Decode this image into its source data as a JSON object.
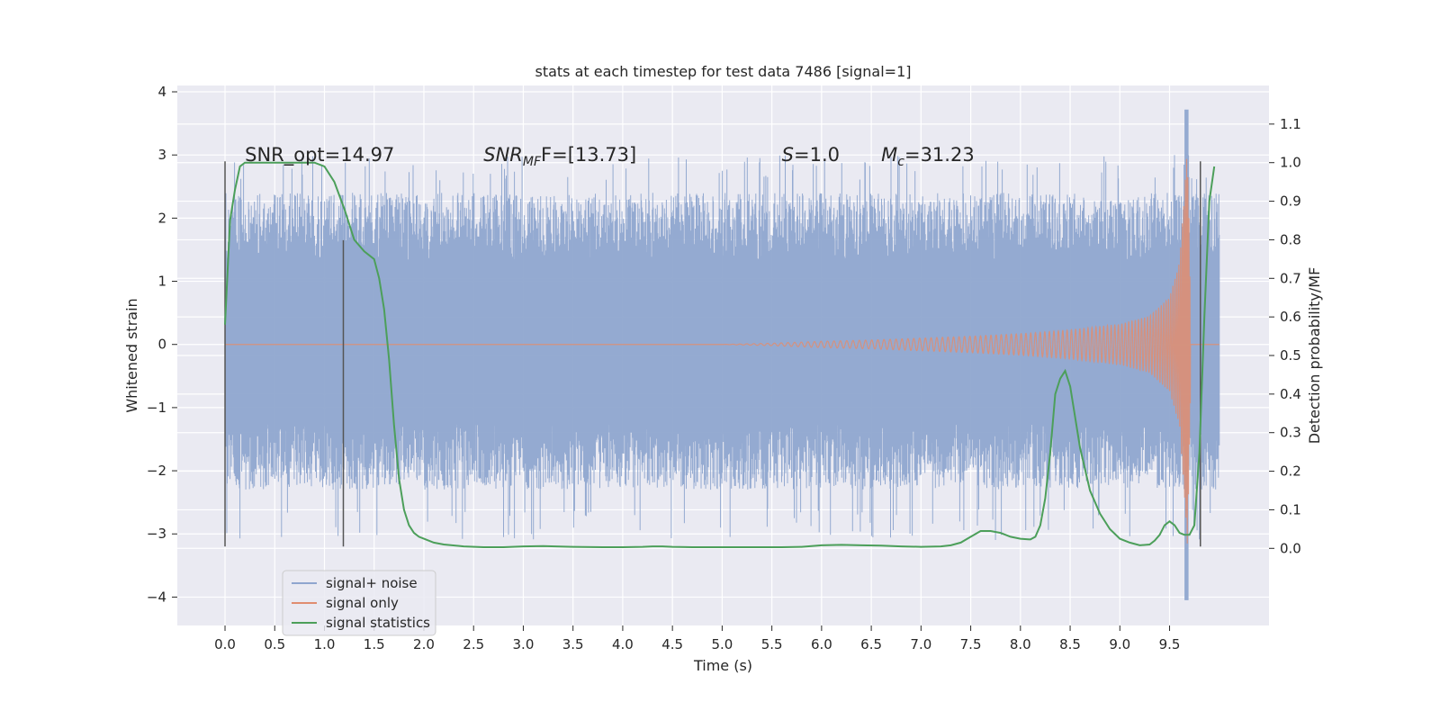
{
  "chart_data": {
    "type": "line",
    "title": "stats at each timestep for test data 7486 [signal=1]",
    "xlabel": "Time (s)",
    "ylabel": "Whitened strain",
    "ylabel_right": "Detection probability/MF",
    "xlim": [
      -0.48,
      10.5
    ],
    "ylim": [
      -4.45,
      4.1
    ],
    "ylim_right": [
      -0.2,
      1.2
    ],
    "x_ticks": [
      0.0,
      0.5,
      1.0,
      1.5,
      2.0,
      2.5,
      3.0,
      3.5,
      4.0,
      4.5,
      5.0,
      5.5,
      6.0,
      6.5,
      7.0,
      7.5,
      8.0,
      8.5,
      9.0,
      9.5
    ],
    "x_tick_labels": [
      "0.0",
      "0.5",
      "1.0",
      "1.5",
      "2.0",
      "2.5",
      "3.0",
      "3.5",
      "4.0",
      "4.5",
      "5.0",
      "5.5",
      "6.0",
      "6.5",
      "7.0",
      "7.5",
      "8.0",
      "8.5",
      "9.0",
      "9.5"
    ],
    "y_ticks": [
      -4,
      -3,
      -2,
      -1,
      0,
      1,
      2,
      3,
      4
    ],
    "y_tick_labels": [
      "−4",
      "−3",
      "−2",
      "−1",
      "0",
      "1",
      "2",
      "3",
      "4"
    ],
    "y_right_ticks": [
      0.0,
      0.1,
      0.2,
      0.3,
      0.4,
      0.5,
      0.6,
      0.7,
      0.8,
      0.9,
      1.0,
      1.1
    ],
    "y_right_tick_labels": [
      "0.0",
      "0.1",
      "0.2",
      "0.3",
      "0.4",
      "0.5",
      "0.6",
      "0.7",
      "0.8",
      "0.9",
      "1.0",
      "1.1"
    ],
    "grid": true,
    "legend_position": "lower-left",
    "background_color": "#eaeaf2",
    "annotations": [
      {
        "text": "SNR_opt=14.97",
        "x": 0.2,
        "y": 2.9
      },
      {
        "text": "SNR",
        "sub": "MF",
        "tail": "F=[13.73]",
        "x": 2.6,
        "y": 2.9
      },
      {
        "text": "S",
        "tail": "=1.0",
        "x": 5.6,
        "y": 2.9
      },
      {
        "text": "M",
        "sub": "c",
        "tail": "=31.23",
        "x": 6.6,
        "y": 2.9
      }
    ],
    "vertical_markers": [
      {
        "x": 0.0,
        "y_top": 2.9,
        "y_bottom": -3.2
      },
      {
        "x": 1.19,
        "y_top": 1.65,
        "y_bottom": -3.2
      },
      {
        "x": 9.81,
        "y_top": 2.9,
        "y_bottom": -3.2
      }
    ],
    "noise_band": {
      "x_start": 0.0,
      "x_end": 10.0,
      "typical_max": 2.4,
      "typical_min": -2.3,
      "peak_max": 3.72,
      "peak_min": -4.05,
      "peak_x": 9.67
    },
    "series": [
      {
        "name": "signal+ noise",
        "color": "#8fa6cf",
        "description_points": {
          "x": [
            0.0,
            10.0
          ],
          "range": [
            -4.05,
            3.72
          ]
        }
      },
      {
        "name": "signal only",
        "color": "#e08d70",
        "amplitude_envelope": {
          "x": [
            0.0,
            5.0,
            5.5,
            6.0,
            6.5,
            7.0,
            7.5,
            8.0,
            8.5,
            9.0,
            9.3,
            9.5,
            9.6,
            9.65,
            9.68,
            9.72,
            10.0
          ],
          "y": [
            0.0,
            0.0,
            0.02,
            0.05,
            0.07,
            0.1,
            0.13,
            0.17,
            0.23,
            0.32,
            0.45,
            0.75,
            1.3,
            2.4,
            3.2,
            0.0,
            0.0
          ]
        }
      },
      {
        "name": "signal statistics",
        "color": "#4c9f5a",
        "axis": "right",
        "x": [
          0.0,
          0.05,
          0.1,
          0.15,
          0.2,
          0.3,
          0.5,
          0.7,
          0.9,
          1.0,
          1.1,
          1.2,
          1.3,
          1.4,
          1.5,
          1.55,
          1.6,
          1.65,
          1.7,
          1.75,
          1.8,
          1.85,
          1.9,
          1.95,
          2.0,
          2.1,
          2.2,
          2.4,
          2.6,
          2.8,
          3.0,
          3.2,
          3.5,
          3.8,
          4.0,
          4.2,
          4.3,
          4.4,
          4.5,
          4.7,
          5.0,
          5.3,
          5.6,
          5.8,
          6.0,
          6.2,
          6.4,
          6.6,
          6.8,
          7.0,
          7.2,
          7.3,
          7.4,
          7.5,
          7.6,
          7.7,
          7.8,
          7.9,
          8.0,
          8.1,
          8.15,
          8.2,
          8.25,
          8.3,
          8.35,
          8.4,
          8.45,
          8.5,
          8.55,
          8.6,
          8.7,
          8.8,
          8.9,
          9.0,
          9.1,
          9.2,
          9.3,
          9.35,
          9.4,
          9.45,
          9.5,
          9.55,
          9.6,
          9.65,
          9.7,
          9.75,
          9.8,
          9.85,
          9.9,
          9.95
        ],
        "y": [
          0.58,
          0.85,
          0.93,
          0.99,
          1.0,
          1.0,
          1.0,
          1.0,
          1.0,
          0.99,
          0.95,
          0.88,
          0.8,
          0.77,
          0.75,
          0.7,
          0.62,
          0.49,
          0.32,
          0.18,
          0.1,
          0.06,
          0.04,
          0.03,
          0.025,
          0.015,
          0.01,
          0.005,
          0.003,
          0.003,
          0.005,
          0.006,
          0.004,
          0.003,
          0.003,
          0.004,
          0.005,
          0.005,
          0.004,
          0.003,
          0.003,
          0.003,
          0.003,
          0.004,
          0.008,
          0.009,
          0.008,
          0.007,
          0.005,
          0.004,
          0.005,
          0.008,
          0.015,
          0.03,
          0.045,
          0.045,
          0.04,
          0.03,
          0.025,
          0.023,
          0.03,
          0.06,
          0.13,
          0.25,
          0.4,
          0.44,
          0.46,
          0.42,
          0.34,
          0.26,
          0.15,
          0.09,
          0.05,
          0.025,
          0.015,
          0.008,
          0.01,
          0.02,
          0.035,
          0.06,
          0.07,
          0.06,
          0.04,
          0.035,
          0.035,
          0.06,
          0.25,
          0.6,
          0.9,
          0.99
        ]
      }
    ]
  }
}
